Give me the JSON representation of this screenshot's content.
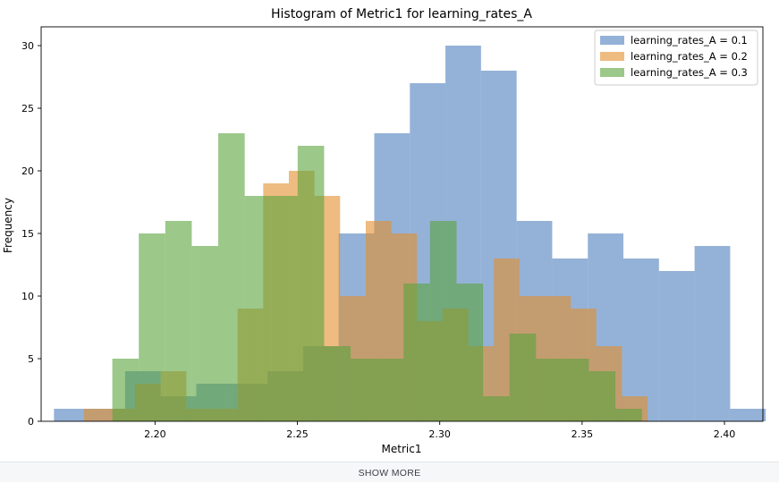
{
  "chart_data": {
    "type": "histogram",
    "title": "Histogram of Metric1 for learning_rates_A",
    "xlabel": "Metric1",
    "ylabel": "Frequency",
    "xlim": [
      2.16,
      2.4135
    ],
    "ylim": [
      0,
      31.5
    ],
    "xticks": [
      2.2,
      2.25,
      2.3,
      2.35,
      2.4
    ],
    "xtick_labels": [
      "2.20",
      "2.25",
      "2.30",
      "2.35",
      "2.40"
    ],
    "yticks": [
      0,
      5,
      10,
      15,
      20,
      25,
      30
    ],
    "ytick_labels": [
      "0",
      "5",
      "10",
      "15",
      "20",
      "25",
      "30"
    ],
    "grid": false,
    "legend_position": "top-right",
    "series": [
      {
        "name": "learning_rates_A = 0.1",
        "color": "#4c7ebc",
        "bin_edges": [
          2.1645,
          2.177,
          2.1895,
          2.202,
          2.2145,
          2.227,
          2.2395,
          2.252,
          2.2645,
          2.277,
          2.2895,
          2.302,
          2.3145,
          2.327,
          2.3395,
          2.352,
          2.3645,
          2.377,
          2.3895,
          2.402,
          2.4145
        ],
        "counts": [
          1,
          1,
          4,
          2,
          3,
          3,
          4,
          6,
          15,
          23,
          27,
          30,
          28,
          16,
          13,
          15,
          13,
          12,
          14,
          1
        ]
      },
      {
        "name": "learning_rates_A = 0.2",
        "color": "#e38d2c",
        "bin_edges": [
          2.175,
          2.184,
          2.193,
          2.202,
          2.211,
          2.22,
          2.229,
          2.238,
          2.247,
          2.256,
          2.265,
          2.274,
          2.283,
          2.292,
          2.301,
          2.31,
          2.319,
          2.328,
          2.337,
          2.346,
          2.355,
          2.364,
          2.373
        ],
        "counts": [
          1,
          1,
          3,
          4,
          1,
          1,
          9,
          19,
          20,
          18,
          10,
          16,
          15,
          8,
          9,
          6,
          13,
          10,
          10,
          9,
          6,
          2
        ]
      },
      {
        "name": "learning_rates_A = 0.3",
        "color": "#5aa33c",
        "bin_edges": [
          2.185,
          2.1943,
          2.2036,
          2.2129,
          2.2222,
          2.2315,
          2.2408,
          2.2501,
          2.2594,
          2.2687,
          2.278,
          2.2873,
          2.2966,
          2.3059,
          2.3152,
          2.3245,
          2.3338,
          2.3431,
          2.3524,
          2.3617,
          2.371
        ],
        "counts": [
          5,
          15,
          16,
          14,
          23,
          18,
          18,
          22,
          6,
          5,
          5,
          11,
          16,
          11,
          2,
          7,
          5,
          5,
          4,
          1
        ]
      }
    ]
  },
  "footer": {
    "show_more_label": "SHOW MORE"
  }
}
